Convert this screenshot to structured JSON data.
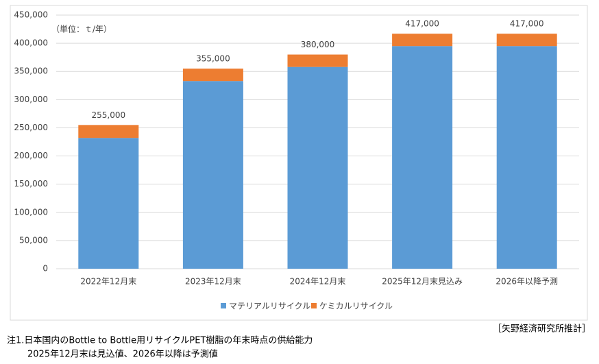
{
  "chart_data": {
    "type": "stacked_bar",
    "unit_label": "（単位：ｔ/年）",
    "categories": [
      "2022年12月末",
      "2023年12月末",
      "2024年12月末",
      "2025年12月末見込み",
      "2026年以降予測"
    ],
    "series": [
      {
        "name": "マテリアルリサイクル",
        "color": "#5b9bd5",
        "values": [
          232000,
          333000,
          358000,
          395000,
          395000
        ]
      },
      {
        "name": "ケミカルリサイクル",
        "color": "#ed7d31",
        "values": [
          23000,
          22000,
          22000,
          22000,
          22000
        ]
      }
    ],
    "totals": [
      255000,
      355000,
      380000,
      417000,
      417000
    ],
    "total_labels": [
      "255,000",
      "355,000",
      "380,000",
      "417,000",
      "417,000"
    ],
    "ylim": [
      0,
      450000
    ],
    "yticks": [
      0,
      {
        "value": 50000,
        "label": "50,000"
      },
      {
        "value": 100000,
        "label": "100,000"
      },
      {
        "value": 150000,
        "label": "150,000"
      },
      {
        "value": 200000,
        "label": "200,000"
      },
      {
        "value": 250000,
        "label": "250,000"
      },
      {
        "value": 300000,
        "label": "300,000"
      },
      {
        "value": 350000,
        "label": "350,000"
      },
      {
        "value": 400000,
        "label": "400,000"
      },
      {
        "value": 450000,
        "label": "450,000"
      }
    ],
    "grid": true,
    "legend": "bottom",
    "source": "［矢野経済研究所推計］",
    "notes": [
      "注1.日本国内のBottle to Bottle用リサイクルPET樹脂の年末時点の供給能力",
      "2025年12月末は見込値、2026年以降は予測値"
    ]
  }
}
